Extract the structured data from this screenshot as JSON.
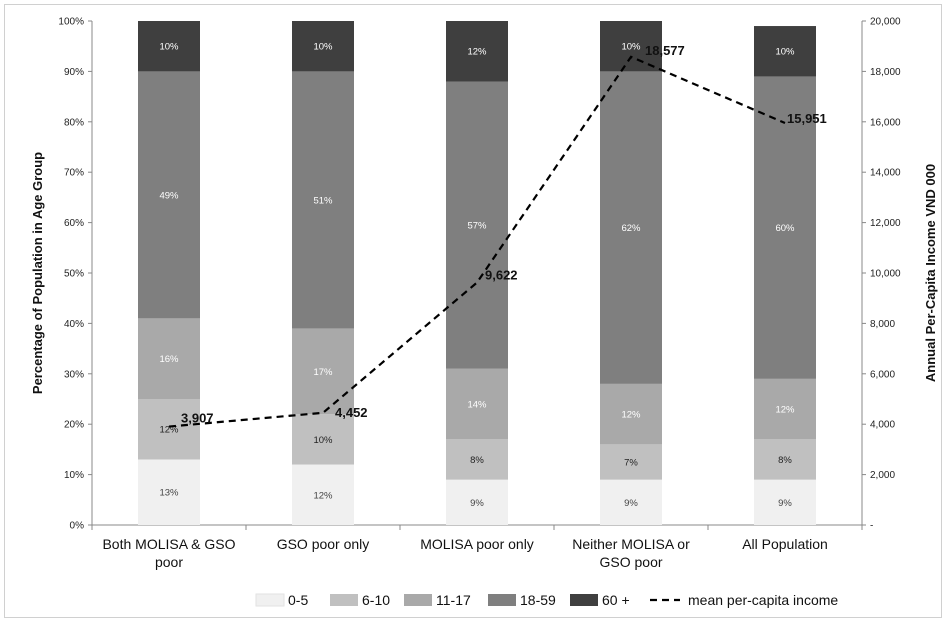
{
  "chart_data": {
    "type": "bar",
    "stacked": true,
    "categories": [
      [
        "Both MOLISA & GSO",
        "poor"
      ],
      [
        "GSO poor only"
      ],
      [
        "MOLISA poor only"
      ],
      [
        "Neither MOLISA or",
        "GSO poor"
      ],
      [
        "All Population"
      ]
    ],
    "series": [
      {
        "name": "0-5",
        "color": "#f0f0f0",
        "label_color": "#444444",
        "values": [
          13,
          12,
          9,
          9,
          9
        ]
      },
      {
        "name": "6-10",
        "color": "#c0c0c0",
        "label_color": "#222222",
        "values": [
          12,
          10,
          8,
          7,
          8
        ]
      },
      {
        "name": "11-17",
        "color": "#a9a9a9",
        "label_color": "#ffffff",
        "values": [
          16,
          17,
          14,
          12,
          12
        ]
      },
      {
        "name": "18-59",
        "color": "#7f7f7f",
        "label_color": "#ffffff",
        "values": [
          49,
          51,
          57,
          62,
          60
        ]
      },
      {
        "name": "60 +",
        "color": "#3f3f3f",
        "label_color": "#ffffff",
        "values": [
          10,
          10,
          12,
          10,
          10
        ]
      }
    ],
    "line_series": {
      "name": "mean per-capita income",
      "values": [
        3907,
        4452,
        9622,
        18577,
        15951
      ],
      "labels": [
        "3,907",
        "4,452",
        "9,622",
        "18,577",
        "15,951"
      ]
    },
    "ylabel": "Percentage of Population in Age Group",
    "y2label": "Annual Per-Capita Income VND 000",
    "ylim": [
      0,
      100
    ],
    "y2lim": [
      0,
      20000
    ],
    "yticks": [
      "0%",
      "10%",
      "20%",
      "30%",
      "40%",
      "50%",
      "60%",
      "70%",
      "80%",
      "90%",
      "100%"
    ],
    "y2ticks": [
      "-",
      "2,000",
      "4,000",
      "6,000",
      "8,000",
      "10,000",
      "12,000",
      "14,000",
      "16,000",
      "18,000",
      "20,000"
    ],
    "legend_position": "bottom"
  }
}
